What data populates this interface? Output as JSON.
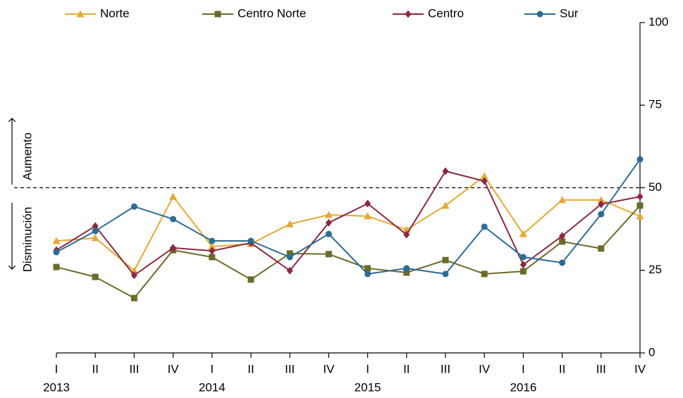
{
  "chart_data": {
    "type": "line",
    "categories": [
      "I",
      "II",
      "III",
      "IV",
      "I",
      "II",
      "III",
      "IV",
      "I",
      "II",
      "III",
      "IV",
      "I",
      "II",
      "III",
      "IV"
    ],
    "x_groups": [
      "2013",
      "2014",
      "2015",
      "2016"
    ],
    "series": [
      {
        "name": "Norte",
        "color": "#e3a934",
        "marker": "triangle",
        "values": [
          33.9,
          34.8,
          24.9,
          47.3,
          32.2,
          33.0,
          39.0,
          41.8,
          41.4,
          37.3,
          44.6,
          53.5,
          36.0,
          46.3,
          46.3,
          41.4
        ]
      },
      {
        "name": "Centro Norte",
        "color": "#6b6b2a",
        "marker": "square",
        "values": [
          26.0,
          23.0,
          16.6,
          31.1,
          29.0,
          22.2,
          30.1,
          29.9,
          25.6,
          24.3,
          28.1,
          23.9,
          24.7,
          33.7,
          31.6,
          44.6
        ]
      },
      {
        "name": "Centro",
        "color": "#8b2742",
        "marker": "diamond",
        "values": [
          31.1,
          38.4,
          23.5,
          31.8,
          30.9,
          33.3,
          24.9,
          39.4,
          45.2,
          35.8,
          55.0,
          52.0,
          26.7,
          35.4,
          45.0,
          47.3
        ]
      },
      {
        "name": "Sur",
        "color": "#2e6b94",
        "marker": "circle",
        "values": [
          30.5,
          36.9,
          44.3,
          40.5,
          33.9,
          33.9,
          29.0,
          36.0,
          23.9,
          25.6,
          23.9,
          38.2,
          29.0,
          27.3,
          42.0,
          58.6
        ]
      }
    ],
    "ylim": [
      0,
      100
    ],
    "yticks": [
      0,
      25,
      50,
      75,
      100
    ],
    "y_axis_side": "right",
    "reference_line": 50,
    "annotations": [
      "Aumento",
      "Disminución"
    ]
  }
}
